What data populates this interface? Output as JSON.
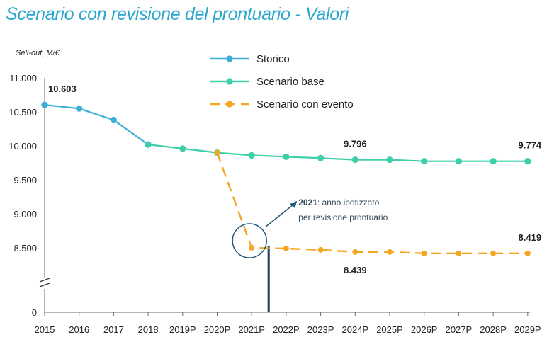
{
  "title": "Scenario con revisione del prontuario - Valori",
  "chart_data": {
    "type": "line",
    "y_unit_label": "Sell-out, M/€",
    "categories": [
      "2015",
      "2016",
      "2017",
      "2018",
      "2019P",
      "2020P",
      "2021P",
      "2022P",
      "2023P",
      "2024P",
      "2025P",
      "2026P",
      "2027P",
      "2028P",
      "2029P"
    ],
    "y_ticks": [
      {
        "value": 0,
        "label": "0"
      },
      {
        "value": 8500,
        "label": "8.500"
      },
      {
        "value": 9000,
        "label": "9.000"
      },
      {
        "value": 9500,
        "label": "9.500"
      },
      {
        "value": 10000,
        "label": "10.000"
      },
      {
        "value": 10500,
        "label": "10.500"
      },
      {
        "value": 11000,
        "label": "11.000"
      }
    ],
    "axis_break": true,
    "series": [
      {
        "name": "Storico",
        "color": "#3aaed8",
        "style": "solid",
        "values": [
          10603,
          10550,
          10380,
          10020,
          null,
          null,
          null,
          null,
          null,
          null,
          null,
          null,
          null,
          null,
          null
        ]
      },
      {
        "name": "Scenario base",
        "color": "#3ecfa8",
        "style": "solid",
        "values": [
          null,
          null,
          null,
          10020,
          9960,
          9900,
          9860,
          9840,
          9820,
          9796,
          9796,
          9774,
          9774,
          9774,
          9774
        ]
      },
      {
        "name": "Scenario con evento",
        "color": "#f5a623",
        "style": "dashed",
        "values": [
          null,
          null,
          null,
          null,
          null,
          9900,
          8500,
          8490,
          8470,
          8439,
          8439,
          8419,
          8419,
          8419,
          8419
        ]
      }
    ],
    "data_labels": [
      {
        "text": "10.603",
        "series": 0,
        "index": 0,
        "pos": "above"
      },
      {
        "text": "9.796",
        "series": 1,
        "index": 9,
        "pos": "above"
      },
      {
        "text": "9.774",
        "series": 1,
        "index": 14,
        "pos": "above"
      },
      {
        "text": "8.419",
        "series": 2,
        "index": 14,
        "pos": "above"
      },
      {
        "text": "8.439",
        "series": 2,
        "index": 9,
        "pos": "below"
      }
    ],
    "annotation": {
      "bold": "2021",
      "text": ": anno ipotizzato",
      "line2": "per revisione prontuario",
      "index": 6
    },
    "legend_position": "top-center"
  }
}
